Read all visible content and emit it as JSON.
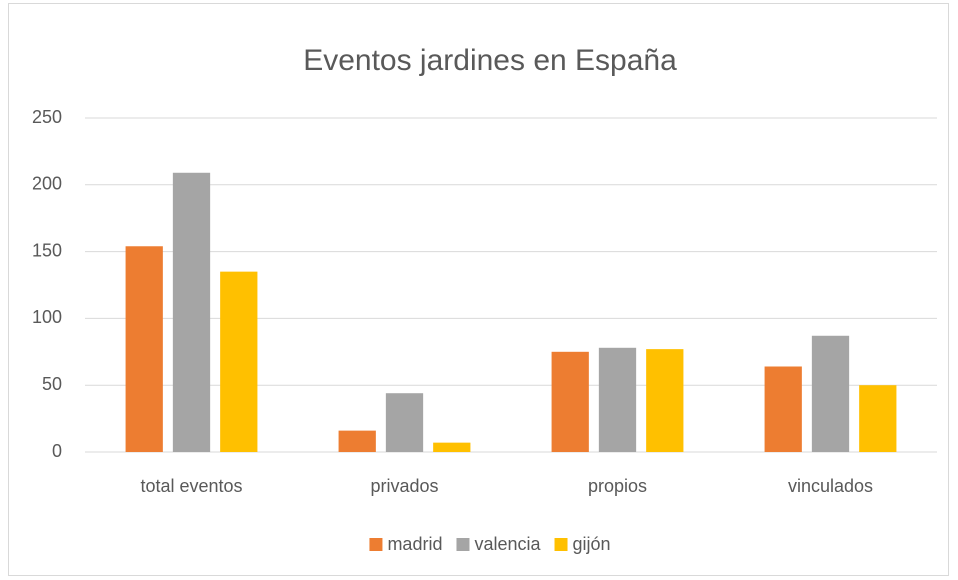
{
  "chart_data": {
    "type": "bar",
    "title": "Eventos jardines en España",
    "categories": [
      "total eventos",
      "privados",
      "propios",
      "vinculados"
    ],
    "series": [
      {
        "name": "madrid",
        "color": "#ed7d31",
        "values": [
          154,
          16,
          75,
          64
        ]
      },
      {
        "name": "valencia",
        "color": "#a5a5a5",
        "values": [
          209,
          44,
          78,
          87
        ]
      },
      {
        "name": "gijón",
        "color": "#ffc000",
        "values": [
          135,
          7,
          77,
          50
        ]
      }
    ],
    "ylim": [
      0,
      250
    ],
    "yticks": [
      0,
      50,
      100,
      150,
      200,
      250
    ],
    "grid": true,
    "legend": "bottom"
  }
}
